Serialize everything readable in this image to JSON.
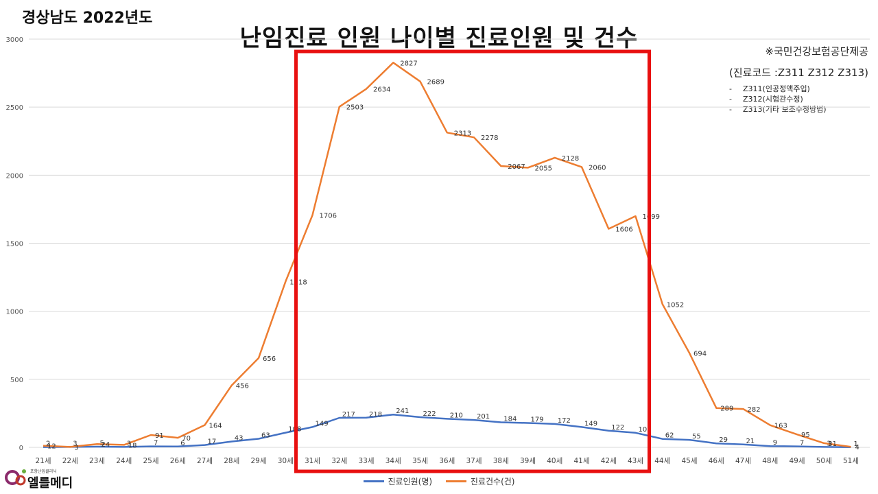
{
  "region_title": "경상남도 2022년도",
  "main_title": "난임진료 인원 나이별 진료인원 및 건수",
  "source": {
    "line1": "※국민건강보험공단제공",
    "line2": "(진료코드 :Z311 Z312 Z313)",
    "codes": [
      "Z311(인공정액주입)",
      "Z312(시험관수정)",
      "Z313(기타 보조수정방법)"
    ]
  },
  "logo": {
    "text": "엘를메디",
    "subtext": "포항난임클리닉"
  },
  "colors": {
    "blue": "#4472C4",
    "orange": "#ED7D31",
    "highlight": "#E81010",
    "grid": "#D9D9D9"
  },
  "chart_data": {
    "type": "line",
    "categories": [
      "21세",
      "22세",
      "23세",
      "24세",
      "25세",
      "26세",
      "27세",
      "28세",
      "29세",
      "30세",
      "31세",
      "32세",
      "33세",
      "34세",
      "35세",
      "36세",
      "37세",
      "38세",
      "39세",
      "40세",
      "41세",
      "42세",
      "43세",
      "44세",
      "45세",
      "46세",
      "47세",
      "48세",
      "49세",
      "50세",
      "51세"
    ],
    "ylim": [
      0,
      3000
    ],
    "yticks": [
      0,
      500,
      1000,
      1500,
      2000,
      2500,
      3000
    ],
    "grid": true,
    "legend_position": "bottom",
    "series": [
      {
        "name": "진료인원(명)",
        "color": "#4472C4",
        "values": [
          2,
          3,
          5,
          3,
          7,
          6,
          17,
          43,
          63,
          108,
          149,
          217,
          218,
          241,
          222,
          210,
          201,
          184,
          179,
          172,
          149,
          122,
          107,
          62,
          55,
          29,
          21,
          9,
          7,
          3,
          1
        ]
      },
      {
        "name": "진료건수(건)",
        "color": "#ED7D31",
        "values": [
          12,
          3,
          24,
          18,
          91,
          70,
          164,
          456,
          656,
          1218,
          1706,
          2503,
          2634,
          2827,
          2689,
          2313,
          2278,
          2067,
          2055,
          2128,
          2060,
          1606,
          1699,
          1052,
          694,
          289,
          282,
          163,
          95,
          31,
          4
        ]
      }
    ],
    "highlight_range": [
      "31세",
      "43세"
    ]
  }
}
